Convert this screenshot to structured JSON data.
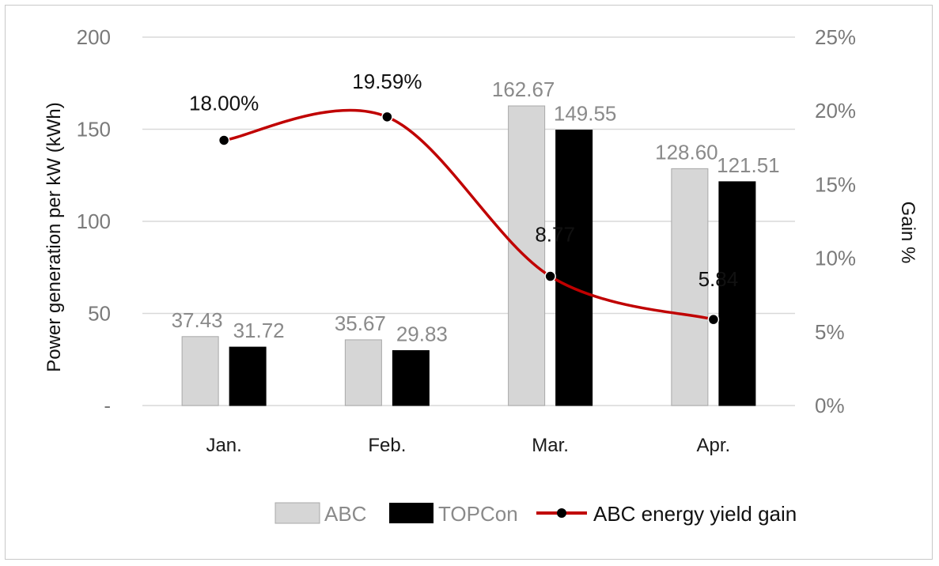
{
  "chart_data": {
    "type": "bar",
    "categories": [
      "Jan.",
      "Feb.",
      "Mar.",
      "Apr."
    ],
    "series": [
      {
        "name": "ABC",
        "values": [
          37.43,
          35.67,
          162.67,
          128.6
        ],
        "labels": [
          "37.43",
          "35.67",
          "162.67",
          "128.60"
        ],
        "color": "#d6d6d6",
        "axis": "left"
      },
      {
        "name": "TOPCon",
        "values": [
          31.72,
          29.83,
          149.55,
          121.51
        ],
        "labels": [
          "31.72",
          "29.83",
          "149.55",
          "121.51"
        ],
        "color": "#000000",
        "axis": "left"
      }
    ],
    "line_series": {
      "name": "ABC energy yield gain",
      "values": [
        18.0,
        19.59,
        8.77,
        5.84
      ],
      "labels": [
        "18.00%",
        "19.59%",
        "8.77",
        "5.84"
      ],
      "color": "#c00000",
      "axis": "right",
      "smooth": true
    },
    "ylabel": "Power generation per kW (kWh)",
    "y2label": "Gain %",
    "ylim": [
      0,
      200
    ],
    "y2lim": [
      0,
      25
    ],
    "yticks": [
      {
        "v": 0,
        "t": "-"
      },
      {
        "v": 50,
        "t": "50"
      },
      {
        "v": 100,
        "t": "100"
      },
      {
        "v": 150,
        "t": "150"
      },
      {
        "v": 200,
        "t": "200"
      }
    ],
    "y2ticks": [
      {
        "v": 0,
        "t": "0%"
      },
      {
        "v": 5,
        "t": "5%"
      },
      {
        "v": 10,
        "t": "10%"
      },
      {
        "v": 15,
        "t": "15%"
      },
      {
        "v": 20,
        "t": "20%"
      },
      {
        "v": 25,
        "t": "25%"
      }
    ],
    "grid": true,
    "legend": {
      "position": "bottom",
      "items": [
        "ABC",
        "TOPCon",
        "ABC energy yield gain"
      ]
    }
  }
}
